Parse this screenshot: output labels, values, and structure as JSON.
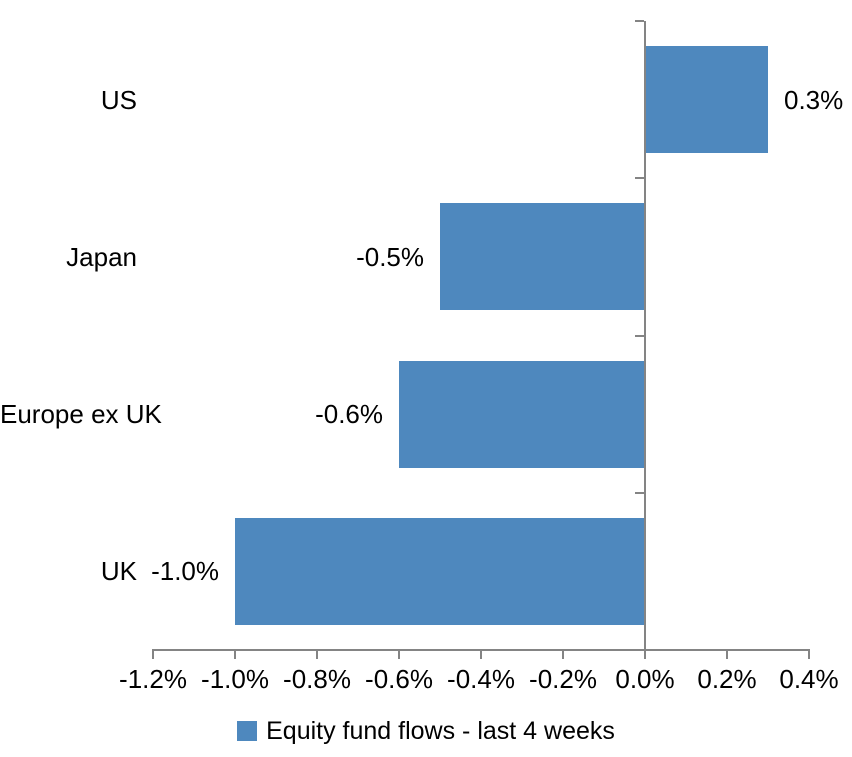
{
  "chart_data": {
    "type": "bar",
    "orientation": "horizontal",
    "title": "",
    "xlabel": "",
    "ylabel": "",
    "categories": [
      "US",
      "Japan",
      "Europe ex UK",
      "UK"
    ],
    "series": [
      {
        "name": "Equity fund flows - last 4 weeks",
        "values": [
          0.3,
          -0.5,
          -0.6,
          -1.0
        ],
        "data_labels": [
          "0.3%",
          "-0.5%",
          "-0.6%",
          "-1.0%"
        ]
      }
    ],
    "xlim": [
      -1.2,
      0.4
    ],
    "x_tick_labels": [
      "-1.2%",
      "-1.0%",
      "-0.8%",
      "-0.6%",
      "-0.4%",
      "-0.2%",
      "0.0%",
      "0.2%",
      "0.4%"
    ],
    "x_tick_step": 0.2,
    "grid": false,
    "legend_position": "bottom",
    "colors": {
      "bar": "#4E88BE",
      "axis": "#848484",
      "text": "#000000",
      "background": "#FFFFFF"
    }
  },
  "legend": {
    "items": [
      {
        "label": "Equity fund flows - last 4 weeks",
        "color": "#4E88BE"
      }
    ]
  }
}
